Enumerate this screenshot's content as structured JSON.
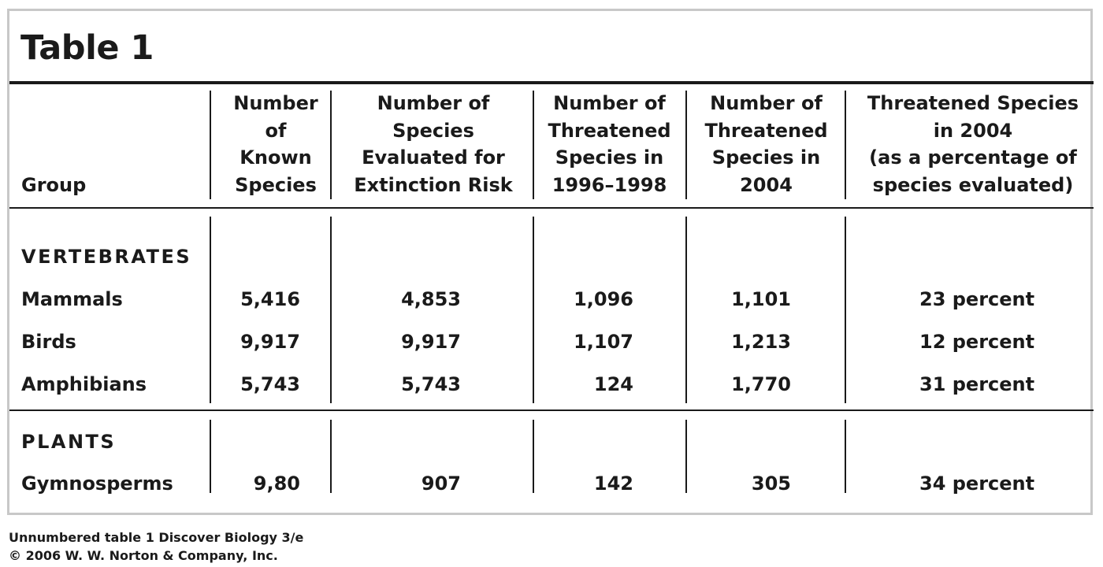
{
  "title": "Table 1",
  "columns": [
    "Group",
    "Number\nof\nKnown\nSpecies",
    "Number of\nSpecies\nEvaluated for\nExtinction Risk",
    "Number of\nThreatened\nSpecies in\n1996–1998",
    "Number of\nThreatened\nSpecies in\n2004",
    "Threatened Species\nin 2004\n(as a percentage of\nspecies evaluated)"
  ],
  "sections": [
    {
      "name": "VERTEBRATES",
      "rows": [
        {
          "group": "Mammals",
          "known": "5,416",
          "evaluated": "4,853",
          "threatened_1996_1998": "1,096",
          "threatened_2004": "1,101",
          "percent": "23 percent"
        },
        {
          "group": "Birds",
          "known": "9,917",
          "evaluated": "9,917",
          "threatened_1996_1998": "1,107",
          "threatened_2004": "1,213",
          "percent": "12 percent"
        },
        {
          "group": "Amphibians",
          "known": "5,743",
          "evaluated": "5,743",
          "threatened_1996_1998": "124",
          "threatened_2004": "1,770",
          "percent": "31 percent"
        }
      ]
    },
    {
      "name": "PLANTS",
      "rows": [
        {
          "group": "Gymnosperms",
          "known": "9,80",
          "evaluated": "907",
          "threatened_1996_1998": "142",
          "threatened_2004": "305",
          "percent": "34 percent"
        }
      ]
    }
  ],
  "footer": {
    "line1": "Unnumbered table 1  Discover Biology 3/e",
    "line2": "© 2006 W. W. Norton & Company, Inc."
  }
}
